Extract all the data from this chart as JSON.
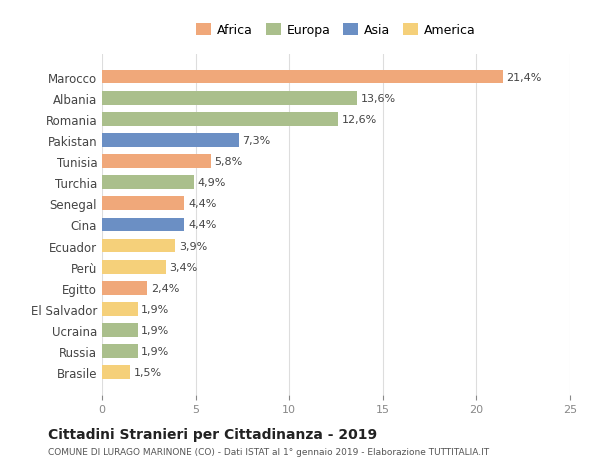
{
  "countries": [
    "Marocco",
    "Albania",
    "Romania",
    "Pakistan",
    "Tunisia",
    "Turchia",
    "Senegal",
    "Cina",
    "Ecuador",
    "Perù",
    "Egitto",
    "El Salvador",
    "Ucraina",
    "Russia",
    "Brasile"
  ],
  "values": [
    21.4,
    13.6,
    12.6,
    7.3,
    5.8,
    4.9,
    4.4,
    4.4,
    3.9,
    3.4,
    2.4,
    1.9,
    1.9,
    1.9,
    1.5
  ],
  "labels": [
    "21,4%",
    "13,6%",
    "12,6%",
    "7,3%",
    "5,8%",
    "4,9%",
    "4,4%",
    "4,4%",
    "3,9%",
    "3,4%",
    "2,4%",
    "1,9%",
    "1,9%",
    "1,9%",
    "1,5%"
  ],
  "continents": [
    "Africa",
    "Europa",
    "Europa",
    "Asia",
    "Africa",
    "Europa",
    "Africa",
    "Asia",
    "America",
    "America",
    "Africa",
    "America",
    "Europa",
    "Europa",
    "America"
  ],
  "colors": {
    "Africa": "#F0A87A",
    "Europa": "#AABF8C",
    "Asia": "#6B8FC4",
    "America": "#F5D07A"
  },
  "legend_order": [
    "Africa",
    "Europa",
    "Asia",
    "America"
  ],
  "xlim": [
    0,
    25
  ],
  "xticks": [
    0,
    5,
    10,
    15,
    20,
    25
  ],
  "title": "Cittadini Stranieri per Cittadinanza - 2019",
  "subtitle": "COMUNE DI LURAGO MARINONE (CO) - Dati ISTAT al 1° gennaio 2019 - Elaborazione TUTTITALIA.IT",
  "background_color": "#FFFFFF",
  "grid_color": "#DDDDDD",
  "bar_height": 0.65
}
